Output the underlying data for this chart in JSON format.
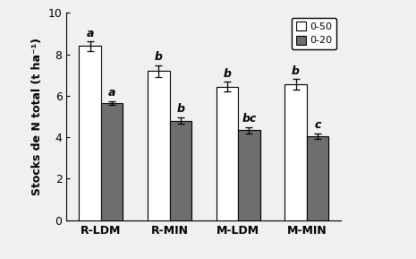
{
  "categories": [
    "R-LDM",
    "R-MIN",
    "M-LDM",
    "M-MIN"
  ],
  "values_050": [
    8.4,
    7.2,
    6.45,
    6.55
  ],
  "values_020": [
    5.65,
    4.8,
    4.35,
    4.05
  ],
  "errors_050": [
    0.22,
    0.28,
    0.22,
    0.25
  ],
  "errors_020": [
    0.1,
    0.15,
    0.15,
    0.12
  ],
  "letters_050": [
    "a",
    "b",
    "b",
    "b"
  ],
  "letters_020": [
    "a",
    "b",
    "bc",
    "c"
  ],
  "color_050": "#ffffff",
  "color_020": "#6e6e6e",
  "edgecolor": "#000000",
  "bar_width": 0.32,
  "ylabel": "Stocks de N total (t ha⁻¹)",
  "ylim": [
    0,
    10
  ],
  "yticks": [
    0,
    2,
    4,
    6,
    8,
    10
  ],
  "legend_labels": [
    "0-50",
    "0-20"
  ],
  "legend_colors": [
    "#ffffff",
    "#6e6e6e"
  ],
  "background_color": "#f0f0f0",
  "axis_fontsize": 9,
  "tick_fontsize": 9,
  "letter_fontsize": 9
}
